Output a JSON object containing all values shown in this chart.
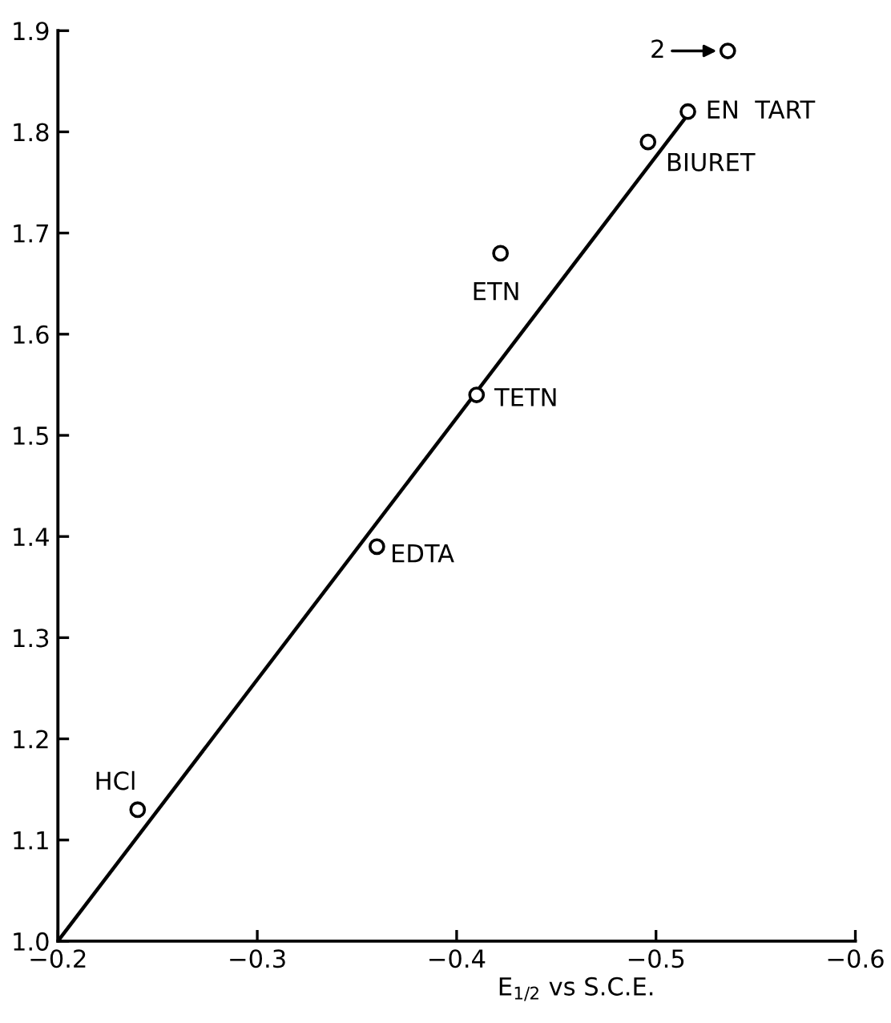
{
  "chart_data": {
    "type": "scatter",
    "xlabel": "E$_{1/2}$ vs S.C.E.",
    "series": [
      {
        "color": "#000000",
        "marker": "circle",
        "x": [
          -0.24,
          -0.36,
          -0.41,
          -0.422,
          -0.496,
          -0.516,
          -0.536
        ],
        "values": [
          1.13,
          1.39,
          1.54,
          1.68,
          1.79,
          1.82,
          1.88
        ]
      },
      {
        "type": "line",
        "color": "#000000",
        "line_style": "solid",
        "x": [
          -0.2,
          -0.514
        ],
        "values": [
          1.0,
          1.812
        ]
      }
    ],
    "annotations": [
      {
        "text": "HCl",
        "x": -0.24,
        "y": 1.13
      },
      {
        "text": "EDTA",
        "x": -0.36,
        "y": 1.39
      },
      {
        "text": "TETN",
        "x": -0.41,
        "y": 1.54
      },
      {
        "text": "ETN",
        "x": -0.422,
        "y": 1.68
      },
      {
        "text": "BIURET",
        "x": -0.496,
        "y": 1.79
      },
      {
        "text": "EN  TART",
        "x": -0.516,
        "y": 1.82
      },
      {
        "text": "2",
        "x": -0.536,
        "y": 1.88
      }
    ],
    "xlim": [
      -0.2,
      -0.6
    ],
    "ylim": [
      1.0,
      1.9
    ],
    "xticks": [
      {
        "value": -0.2,
        "label": "−0.2"
      },
      {
        "value": -0.3,
        "label": "−0.3"
      },
      {
        "value": -0.4,
        "label": "−0.4"
      },
      {
        "value": -0.5,
        "label": "−0.5"
      },
      {
        "value": -0.6,
        "label": "−0.6"
      }
    ],
    "yticks": [
      {
        "value": 1.0,
        "label": "1.0"
      },
      {
        "value": 1.1,
        "label": "1.1"
      },
      {
        "value": 1.2,
        "label": "1.2"
      },
      {
        "value": 1.3,
        "label": "1.3"
      },
      {
        "value": 1.4,
        "label": "1.4"
      },
      {
        "value": 1.5,
        "label": "1.5"
      },
      {
        "value": 1.6,
        "label": "1.6"
      },
      {
        "value": 1.7,
        "label": "1.7"
      },
      {
        "value": 1.8,
        "label": "1.8"
      },
      {
        "value": 1.9,
        "label": "1.9"
      }
    ],
    "grid": false
  }
}
